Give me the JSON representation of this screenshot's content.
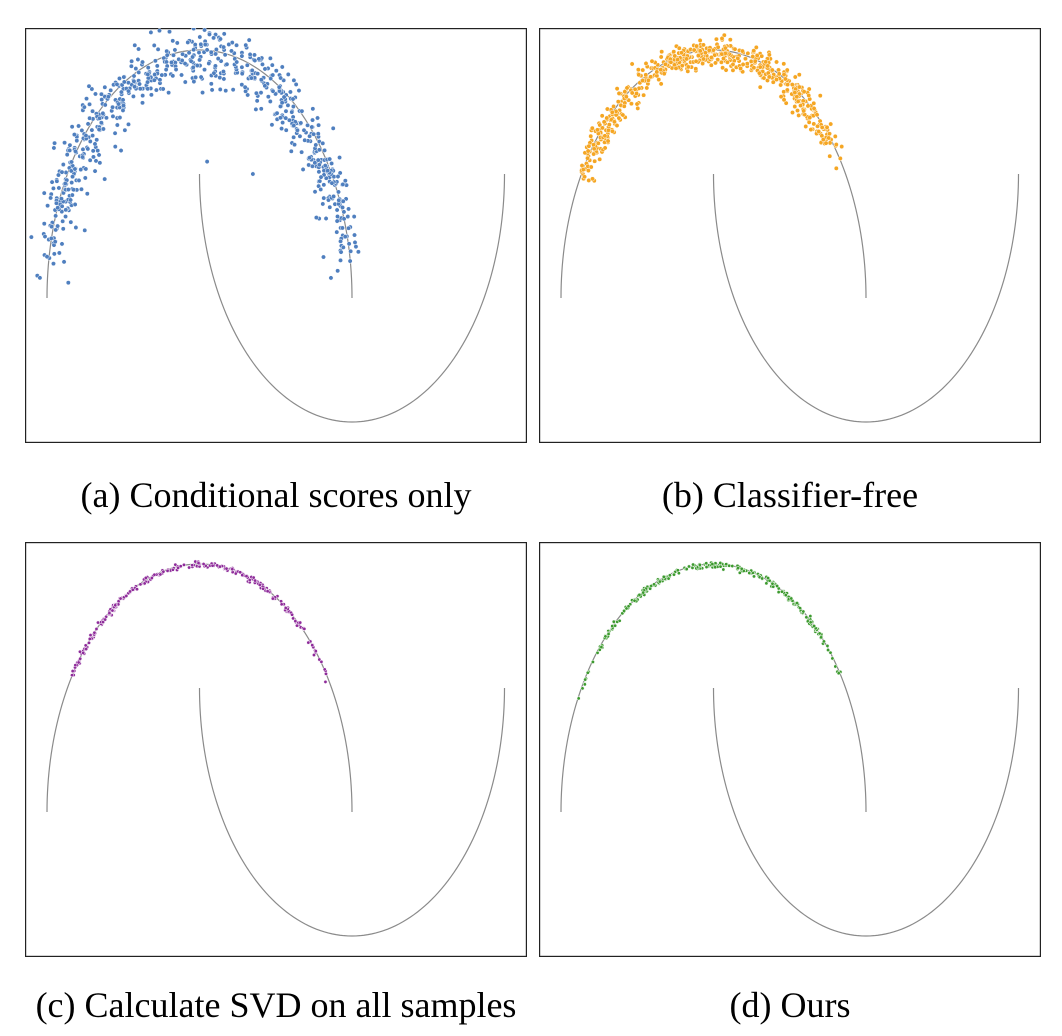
{
  "figure": {
    "panels": [
      {
        "id": "a",
        "caption": "(a) Conditional scores only",
        "color": "#4f7fbf",
        "spread": "wide",
        "x_range": [
          -1.0,
          1.0
        ],
        "n_points": 700
      },
      {
        "id": "b",
        "caption": "(b) Classifier-free",
        "color": "#f5a623",
        "spread": "moderate",
        "x_range": [
          -0.9,
          0.85
        ],
        "n_points": 600
      },
      {
        "id": "c",
        "caption": "(c) Calculate SVD on all samples",
        "color": "#8e2b9a",
        "spread": "tight",
        "x_range": [
          -0.9,
          0.85
        ],
        "n_points": 260
      },
      {
        "id": "d",
        "caption": "(d) Ours",
        "color": "#3c9a2e",
        "spread": "tight",
        "x_range": [
          -0.9,
          0.85
        ],
        "n_points": 260
      }
    ]
  },
  "chart_data": [
    {
      "type": "scatter",
      "title": "(a) Conditional scores only",
      "background_curve": "two-moons",
      "series": [
        {
          "name": "samples",
          "color": "#4f7fbf",
          "support": "upper moon",
          "x_min": -1.0,
          "x_max": 1.0,
          "noise": "wide"
        }
      ],
      "xlim": [
        -1.1,
        2.1
      ],
      "ylim": [
        -0.65,
        1.1
      ],
      "grid": false
    },
    {
      "type": "scatter",
      "title": "(b) Classifier-free",
      "background_curve": "two-moons",
      "series": [
        {
          "name": "samples",
          "color": "#f5a623",
          "support": "upper moon",
          "x_min": -0.9,
          "x_max": 0.85,
          "noise": "moderate"
        }
      ],
      "xlim": [
        -1.1,
        2.1
      ],
      "ylim": [
        -0.65,
        1.1
      ],
      "grid": false
    },
    {
      "type": "scatter",
      "title": "(c) Calculate SVD on all samples",
      "background_curve": "two-moons",
      "series": [
        {
          "name": "samples",
          "color": "#8e2b9a",
          "support": "upper moon",
          "x_min": -0.9,
          "x_max": 0.85,
          "noise": "tight"
        }
      ],
      "xlim": [
        -1.1,
        2.1
      ],
      "ylim": [
        -0.65,
        1.1
      ],
      "grid": false
    },
    {
      "type": "scatter",
      "title": "(d) Ours",
      "background_curve": "two-moons",
      "series": [
        {
          "name": "samples",
          "color": "#3c9a2e",
          "support": "upper moon",
          "x_min": -0.9,
          "x_max": 0.85,
          "noise": "tight"
        }
      ],
      "xlim": [
        -1.1,
        2.1
      ],
      "ylim": [
        -0.65,
        1.1
      ],
      "grid": false
    }
  ]
}
